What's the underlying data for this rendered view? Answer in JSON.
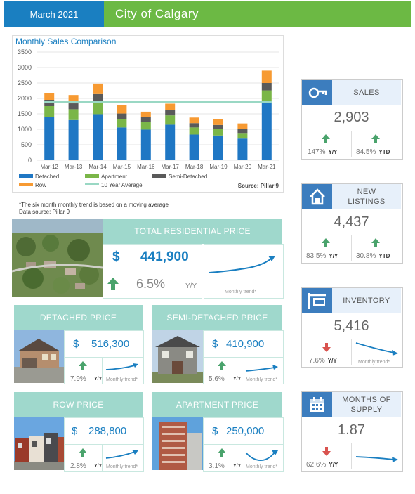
{
  "header": {
    "date": "March 2021",
    "city": "City of Calgary"
  },
  "colors": {
    "detached": "#1f77c4",
    "apartment": "#7ab648",
    "semi": "#5a5a5a",
    "row": "#f79a32",
    "avg": "#9ad8c4",
    "accent_blue": "#1a7fc1",
    "header_green": "#6cb944",
    "teal": "#9fd8cc",
    "up_arrow": "#4aa36c",
    "down_arrow": "#d9534f"
  },
  "chart_data": {
    "type": "bar",
    "title": "Monthly Sales Comparison",
    "categories": [
      "Mar-12",
      "Mar-13",
      "Mar-14",
      "Mar-15",
      "Mar-16",
      "Mar-17",
      "Mar-18",
      "Mar-19",
      "Mar-20",
      "Mar-21"
    ],
    "series": [
      {
        "name": "Detached",
        "values": [
          1400,
          1300,
          1490,
          1060,
          990,
          1150,
          830,
          800,
          700,
          1860
        ]
      },
      {
        "name": "Apartment",
        "values": [
          350,
          350,
          380,
          280,
          250,
          300,
          230,
          200,
          180,
          400
        ]
      },
      {
        "name": "Semi-Detached",
        "values": [
          200,
          190,
          270,
          170,
          150,
          180,
          140,
          140,
          130,
          240
        ]
      },
      {
        "name": "Row",
        "values": [
          220,
          270,
          340,
          270,
          180,
          200,
          180,
          180,
          180,
          400
        ]
      }
    ],
    "avg": {
      "name": "10 Year Average",
      "value": 1880
    },
    "ylim": [
      0,
      3500
    ],
    "yticks": [
      "0",
      "500",
      "1000",
      "1500",
      "2000",
      "2500",
      "3000",
      "3500"
    ],
    "source": "Source: Pillar 9",
    "legend_position": "bottom"
  },
  "notes": {
    "line1": "*The six month monthly trend is based on a moving average",
    "line2": "Data source: Pillar 9"
  },
  "total": {
    "title": "TOTAL RESIDENTIAL PRICE",
    "currency": "$",
    "price": "441,900",
    "pct": "6.5%",
    "pct_label": "Y/Y",
    "trend_label": "Monthly trend*"
  },
  "detached": {
    "title": "DETACHED PRICE",
    "currency": "$",
    "price": "516,300",
    "pct": "7.9%",
    "pct_label": "Y/Y",
    "trend_label": "Monthly trend*"
  },
  "semi": {
    "title": "SEMI-DETACHED PRICE",
    "currency": "$",
    "price": "410,900",
    "pct": "5.6%",
    "pct_label": "Y/Y",
    "trend_label": "Monthly trend*"
  },
  "row": {
    "title": "ROW PRICE",
    "currency": "$",
    "price": "288,800",
    "pct": "2.8%",
    "pct_label": "Y/Y",
    "trend_label": "Monthly trend*"
  },
  "apartment": {
    "title": "APARTMENT PRICE",
    "currency": "$",
    "price": "250,000",
    "pct": "3.1%",
    "pct_label": "Y/Y",
    "trend_label": "Monthly trend*"
  },
  "sales": {
    "title": "SALES",
    "value": "2,903",
    "pct1": "147%",
    "label1": "Y/Y",
    "pct2": "84.5%",
    "label2": "YTD",
    "icon": "key-icon"
  },
  "listings": {
    "title_line1": "NEW",
    "title_line2": "LISTINGS",
    "value": "4,437",
    "pct1": "83.5%",
    "label1": "Y/Y",
    "pct2": "30.8%",
    "label2": "YTD",
    "icon": "house-icon"
  },
  "inventory": {
    "title": "INVENTORY",
    "value": "5,416",
    "pct1": "7.6%",
    "label1": "Y/Y",
    "trend_label": "Monthly trend*",
    "icon": "for-sale-sign-icon"
  },
  "supply": {
    "title_line1": "MONTHS OF",
    "title_line2": "SUPPLY",
    "value": "1.87",
    "pct1": "62.6%",
    "label1": "Y/Y",
    "trend_label": "Monthly trend*",
    "icon": "calendar-icon"
  }
}
